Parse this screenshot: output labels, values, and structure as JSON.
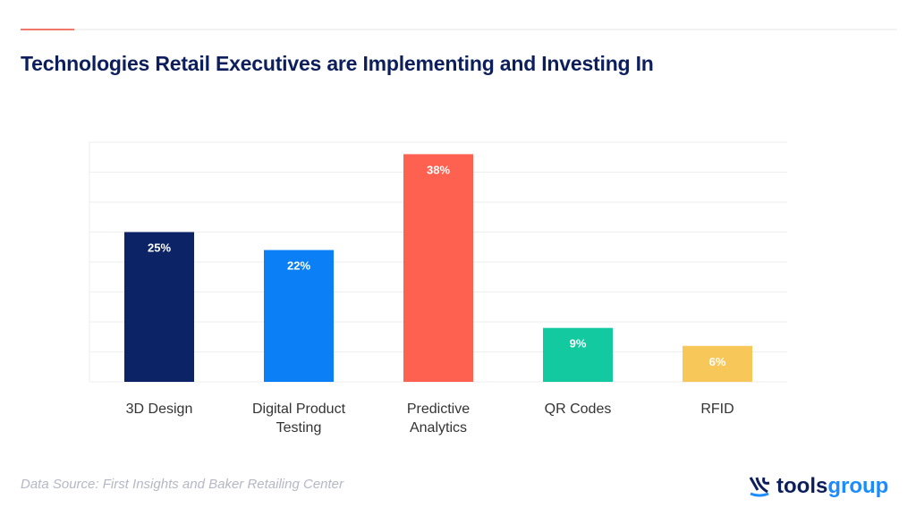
{
  "chart_data": {
    "type": "bar",
    "title": "Technologies Retail Executives are Implementing and Investing In",
    "categories": [
      "3D Design",
      "Digital Product Testing",
      "Predictive Analytics",
      "QR Codes",
      "RFID"
    ],
    "category_lines": [
      [
        "3D Design"
      ],
      [
        "Digital Product",
        "Testing"
      ],
      [
        "Predictive",
        "Analytics"
      ],
      [
        "QR Codes"
      ],
      [
        "RFID"
      ]
    ],
    "values": [
      25,
      22,
      38,
      9,
      6
    ],
    "data_labels": [
      "25%",
      "22%",
      "38%",
      "9%",
      "6%"
    ],
    "colors": [
      "#0c2466",
      "#0b7ff5",
      "#ff6150",
      "#12c9a0",
      "#f8c75a"
    ],
    "ylim": [
      0,
      40
    ],
    "grid": true,
    "xlabel": "",
    "ylabel": ""
  },
  "source": "Data Source: First Insights and Baker Retailing Center",
  "logo": {
    "part1": "tools",
    "part2": "group"
  }
}
